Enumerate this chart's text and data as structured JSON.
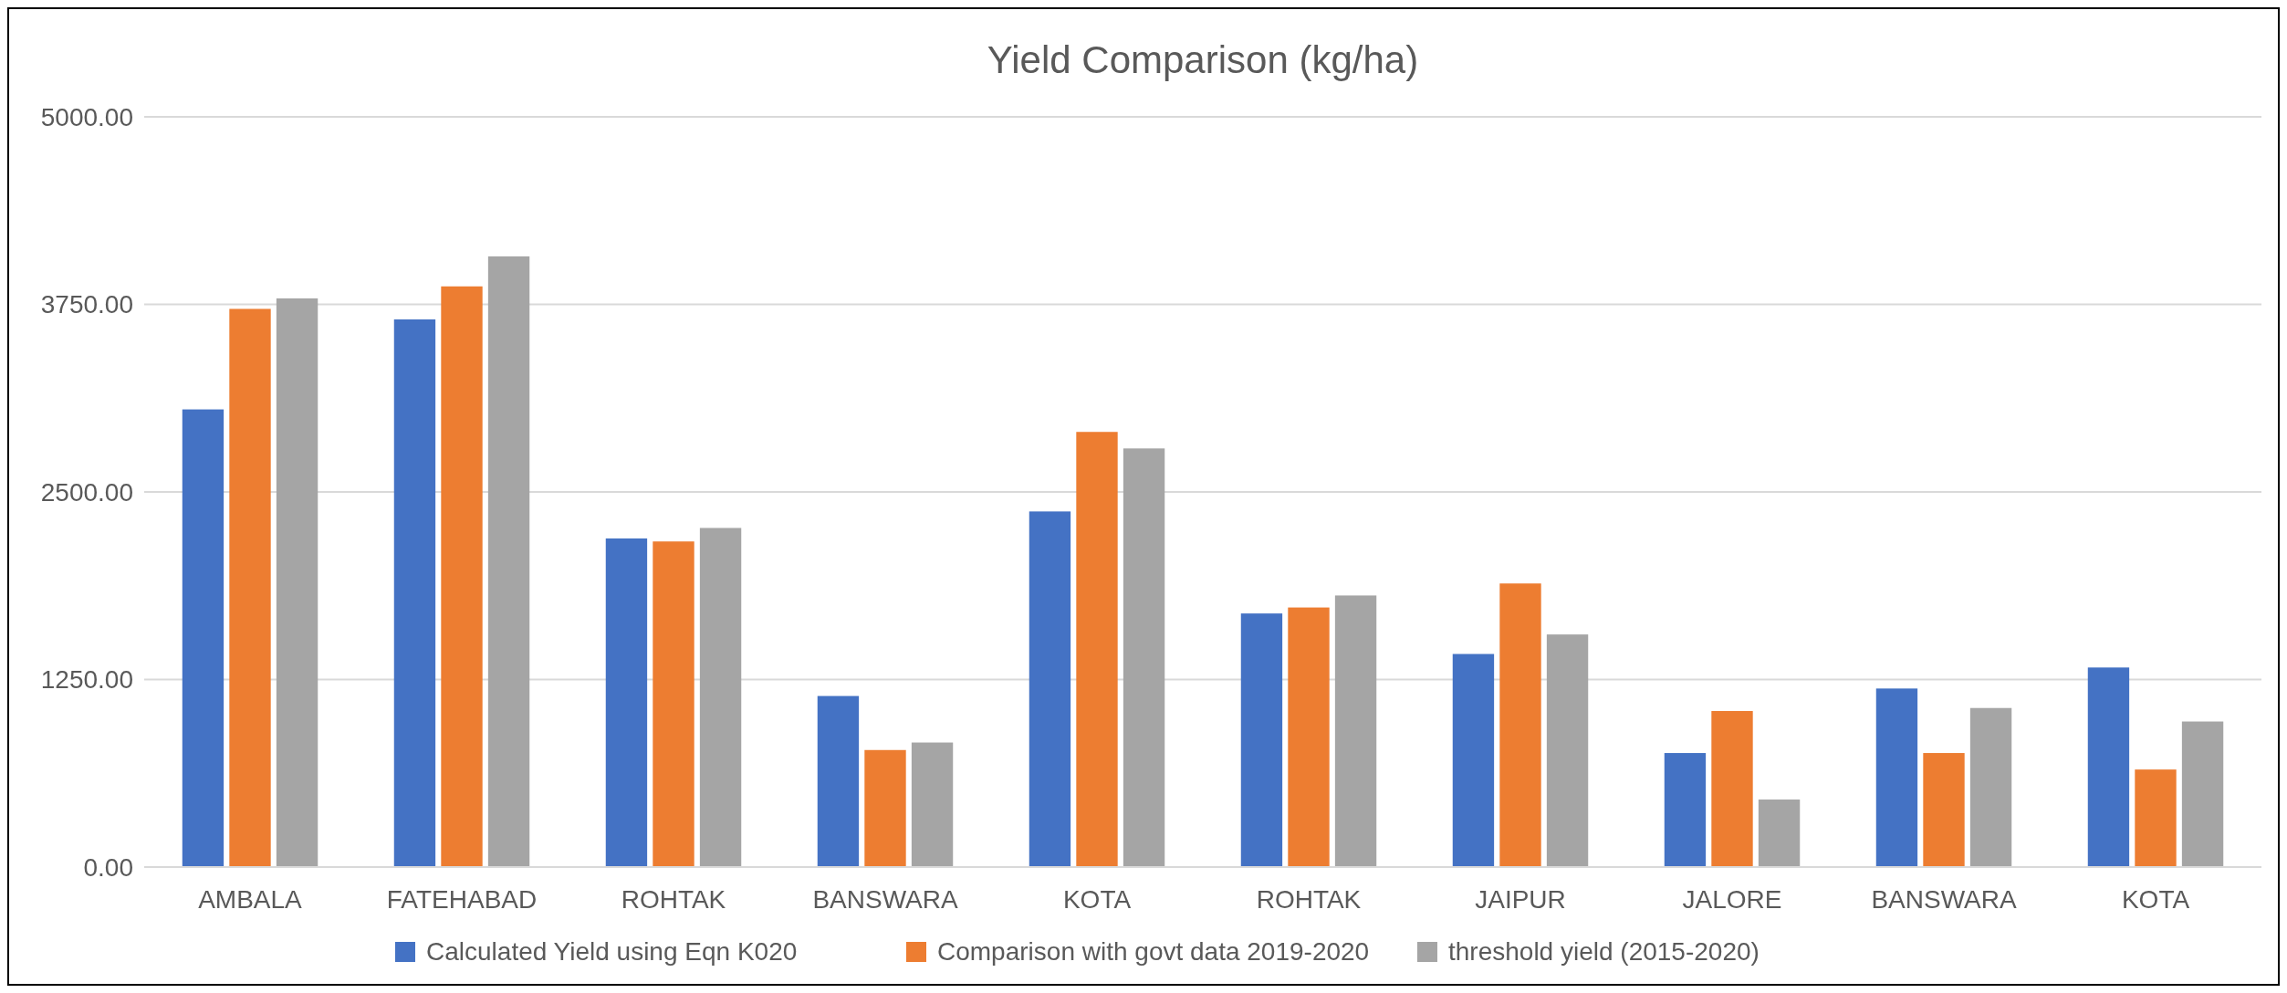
{
  "chart_data": {
    "type": "bar",
    "title": "Yield Comparison (kg/ha)",
    "categories": [
      "AMBALA",
      "FATEHABAD",
      "ROHTAK",
      "BANSWARA",
      "KOTA",
      "ROHTAK",
      "JAIPUR",
      "JALORE",
      "BANSWARA",
      "KOTA"
    ],
    "series": [
      {
        "name": "Calculated Yield using Eqn K020",
        "color": "#4472c4",
        "values": [
          3050,
          3650,
          2190,
          1140,
          2370,
          1690,
          1420,
          760,
          1190,
          1330
        ]
      },
      {
        "name": "Comparison with govt data 2019-2020",
        "color": "#ed7d31",
        "values": [
          3720,
          3870,
          2170,
          780,
          2900,
          1730,
          1890,
          1040,
          760,
          650
        ]
      },
      {
        "name": "threshold yield (2015-2020)",
        "color": "#a5a5a5",
        "values": [
          3790,
          4070,
          2260,
          830,
          2790,
          1810,
          1550,
          450,
          1060,
          970
        ]
      }
    ],
    "ylim": [
      0,
      5000
    ],
    "yticks": [
      {
        "value": 0,
        "label": "0.00"
      },
      {
        "value": 1250,
        "label": "1250.00"
      },
      {
        "value": 2500,
        "label": "2500.00"
      },
      {
        "value": 3750,
        "label": "3750.00"
      },
      {
        "value": 5000,
        "label": "5000.00"
      }
    ],
    "grid": "y",
    "legend": "bottom"
  }
}
